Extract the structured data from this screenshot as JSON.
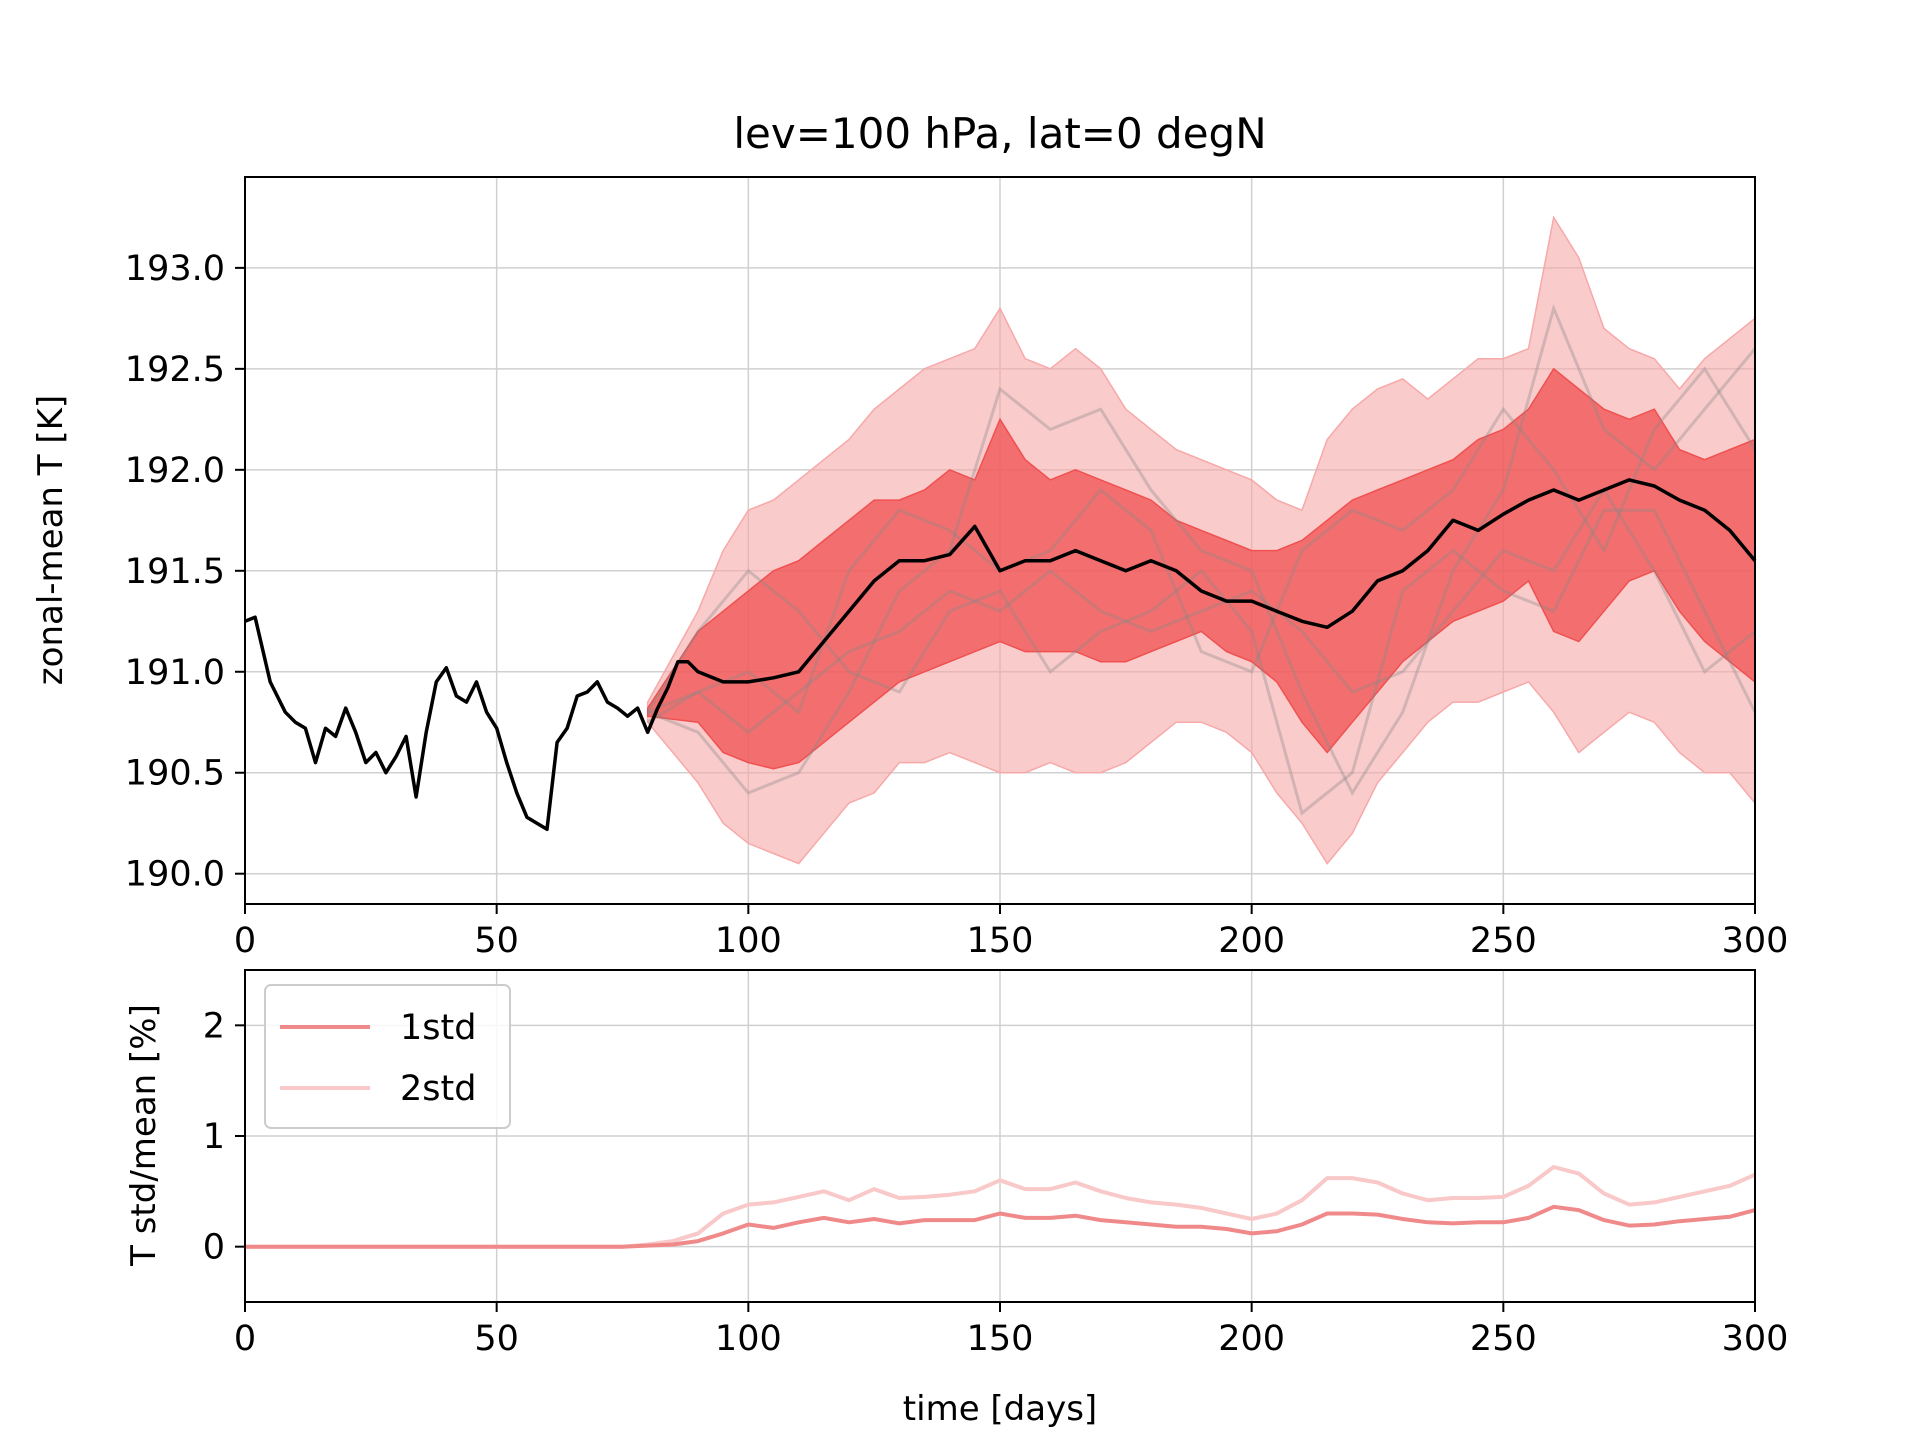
{
  "chart_data": [
    {
      "type": "line",
      "title": "lev=100 hPa, lat=0 degN",
      "xlabel": "",
      "ylabel": "zonal-mean T  [K]",
      "xlim": [
        0,
        300
      ],
      "ylim": [
        189.85,
        193.45
      ],
      "xticks": [
        0,
        50,
        100,
        150,
        200,
        250,
        300
      ],
      "yticks": [
        190.0,
        190.5,
        191.0,
        191.5,
        192.0,
        192.5,
        193.0
      ],
      "ytick_labels": [
        "190.0",
        "190.5",
        "191.0",
        "191.5",
        "192.0",
        "192.5",
        "193.0"
      ],
      "grid": true,
      "series": [
        {
          "role": "mean",
          "color": "#000000",
          "x": [
            0,
            2,
            5,
            8,
            10,
            12,
            14,
            16,
            18,
            20,
            22,
            24,
            26,
            28,
            30,
            32,
            34,
            36,
            38,
            40,
            42,
            44,
            46,
            48,
            50,
            52,
            54,
            56,
            58,
            60,
            62,
            64,
            66,
            68,
            70,
            72,
            74,
            76,
            78,
            80,
            82,
            84,
            86,
            88,
            90,
            95,
            100,
            105,
            110,
            115,
            120,
            125,
            130,
            135,
            140,
            145,
            150,
            155,
            160,
            165,
            170,
            175,
            180,
            185,
            190,
            195,
            200,
            205,
            210,
            215,
            220,
            225,
            230,
            235,
            240,
            245,
            250,
            255,
            260,
            265,
            270,
            275,
            280,
            285,
            290,
            295,
            300
          ],
          "y": [
            191.25,
            191.27,
            190.95,
            190.8,
            190.75,
            190.72,
            190.55,
            190.72,
            190.68,
            190.82,
            190.7,
            190.55,
            190.6,
            190.5,
            190.58,
            190.68,
            190.38,
            190.7,
            190.95,
            191.02,
            190.88,
            190.85,
            190.95,
            190.8,
            190.72,
            190.55,
            190.4,
            190.28,
            190.25,
            190.22,
            190.65,
            190.72,
            190.88,
            190.9,
            190.95,
            190.85,
            190.82,
            190.78,
            190.82,
            190.7,
            190.82,
            190.92,
            191.05,
            191.05,
            191.0,
            190.95,
            190.95,
            190.97,
            191.0,
            191.15,
            191.3,
            191.45,
            191.55,
            191.55,
            191.58,
            191.72,
            191.5,
            191.55,
            191.55,
            191.6,
            191.55,
            191.5,
            191.55,
            191.5,
            191.4,
            191.35,
            191.35,
            191.3,
            191.25,
            191.22,
            191.3,
            191.45,
            191.5,
            191.6,
            191.75,
            191.7,
            191.78,
            191.85,
            191.9,
            191.85,
            191.9,
            191.95,
            191.92,
            191.85,
            191.8,
            191.7,
            191.55
          ]
        }
      ],
      "bands": [
        {
          "name": "2std",
          "color": "#f7a8a8",
          "x": [
            80,
            90,
            95,
            100,
            105,
            110,
            115,
            120,
            125,
            130,
            135,
            140,
            145,
            150,
            155,
            160,
            165,
            170,
            175,
            180,
            185,
            190,
            195,
            200,
            205,
            210,
            215,
            220,
            225,
            230,
            235,
            240,
            245,
            250,
            255,
            260,
            265,
            270,
            275,
            280,
            285,
            290,
            295,
            300
          ],
          "lower": [
            190.75,
            190.45,
            190.25,
            190.15,
            190.1,
            190.05,
            190.2,
            190.35,
            190.4,
            190.55,
            190.55,
            190.6,
            190.55,
            190.5,
            190.5,
            190.55,
            190.5,
            190.5,
            190.55,
            190.65,
            190.75,
            190.75,
            190.7,
            190.6,
            190.4,
            190.25,
            190.05,
            190.2,
            190.45,
            190.6,
            190.75,
            190.85,
            190.85,
            190.9,
            190.95,
            190.8,
            190.6,
            190.7,
            190.8,
            190.75,
            190.6,
            190.5,
            190.5,
            190.35
          ],
          "upper": [
            190.85,
            191.3,
            191.6,
            191.8,
            191.85,
            191.95,
            192.05,
            192.15,
            192.3,
            192.4,
            192.5,
            192.55,
            192.6,
            192.8,
            192.55,
            192.5,
            192.6,
            192.5,
            192.3,
            192.2,
            192.1,
            192.05,
            192.0,
            191.95,
            191.85,
            191.8,
            192.15,
            192.3,
            192.4,
            192.45,
            192.35,
            192.45,
            192.55,
            192.55,
            192.6,
            193.25,
            193.05,
            192.7,
            192.6,
            192.55,
            192.4,
            192.55,
            192.65,
            192.75
          ]
        },
        {
          "name": "1std",
          "color": "#f05050",
          "x": [
            80,
            90,
            95,
            100,
            105,
            110,
            115,
            120,
            125,
            130,
            135,
            140,
            145,
            150,
            155,
            160,
            165,
            170,
            175,
            180,
            185,
            190,
            195,
            200,
            205,
            210,
            215,
            220,
            225,
            230,
            235,
            240,
            245,
            250,
            255,
            260,
            265,
            270,
            275,
            280,
            285,
            290,
            295,
            300
          ],
          "lower": [
            190.78,
            190.75,
            190.6,
            190.55,
            190.52,
            190.55,
            190.65,
            190.75,
            190.85,
            190.95,
            191.0,
            191.05,
            191.1,
            191.15,
            191.1,
            191.1,
            191.1,
            191.05,
            191.05,
            191.1,
            191.15,
            191.2,
            191.1,
            191.05,
            190.95,
            190.75,
            190.6,
            190.75,
            190.9,
            191.05,
            191.15,
            191.25,
            191.3,
            191.35,
            191.45,
            191.2,
            191.15,
            191.3,
            191.45,
            191.5,
            191.3,
            191.15,
            191.05,
            190.95
          ],
          "upper": [
            190.82,
            191.2,
            191.3,
            191.4,
            191.5,
            191.55,
            191.65,
            191.75,
            191.85,
            191.85,
            191.9,
            192.0,
            191.95,
            192.25,
            192.05,
            191.95,
            192.0,
            191.95,
            191.9,
            191.85,
            191.75,
            191.7,
            191.65,
            191.6,
            191.6,
            191.65,
            191.75,
            191.85,
            191.9,
            191.95,
            192.0,
            192.05,
            192.15,
            192.2,
            192.3,
            192.5,
            192.4,
            192.3,
            192.25,
            192.3,
            192.1,
            192.05,
            192.1,
            192.15
          ]
        }
      ],
      "ensemble_members": [
        {
          "color": "#888888",
          "x": [
            80,
            90,
            100,
            110,
            120,
            130,
            140,
            150,
            160,
            170,
            180,
            190,
            200,
            210,
            220,
            230,
            240,
            250,
            260,
            270,
            280,
            290,
            300
          ],
          "y": [
            190.8,
            190.7,
            190.4,
            190.5,
            190.9,
            191.4,
            191.6,
            192.4,
            192.2,
            192.3,
            191.9,
            191.6,
            191.5,
            190.9,
            190.4,
            190.8,
            191.5,
            191.9,
            192.8,
            192.2,
            192.0,
            192.3,
            192.6
          ]
        },
        {
          "color": "#888888",
          "x": [
            80,
            90,
            100,
            110,
            120,
            130,
            140,
            150,
            160,
            170,
            180,
            190,
            200,
            210,
            220,
            230,
            240,
            250,
            260,
            270,
            280,
            290,
            300
          ],
          "y": [
            190.8,
            191.2,
            191.5,
            191.3,
            191.0,
            190.9,
            191.3,
            191.4,
            191.0,
            191.2,
            191.3,
            191.5,
            191.2,
            190.3,
            190.5,
            191.4,
            191.6,
            191.4,
            191.3,
            191.8,
            191.8,
            191.3,
            190.8
          ]
        },
        {
          "color": "#888888",
          "x": [
            80,
            90,
            100,
            110,
            120,
            130,
            140,
            150,
            160,
            170,
            180,
            190,
            200,
            210,
            220,
            230,
            240,
            250,
            260,
            270,
            280,
            290,
            300
          ],
          "y": [
            190.75,
            190.9,
            191.0,
            190.8,
            191.5,
            191.8,
            191.7,
            191.5,
            191.6,
            191.9,
            191.7,
            191.1,
            191.0,
            191.6,
            191.8,
            191.7,
            191.9,
            192.3,
            192.0,
            191.6,
            192.2,
            192.5,
            192.1
          ]
        },
        {
          "color": "#888888",
          "x": [
            80,
            90,
            100,
            110,
            120,
            130,
            140,
            150,
            160,
            170,
            180,
            190,
            200,
            210,
            220,
            230,
            240,
            250,
            260,
            270,
            280,
            290,
            300
          ],
          "y": [
            190.8,
            190.9,
            190.7,
            190.9,
            191.1,
            191.2,
            191.4,
            191.3,
            191.5,
            191.3,
            191.2,
            191.3,
            191.4,
            191.2,
            190.9,
            191.0,
            191.3,
            191.6,
            191.5,
            191.9,
            191.5,
            191.0,
            191.2
          ]
        }
      ]
    },
    {
      "type": "line",
      "title": "",
      "xlabel": "time  [days]",
      "ylabel": "T std/mean  [%]",
      "xlim": [
        0,
        300
      ],
      "ylim": [
        -0.5,
        2.5
      ],
      "xticks": [
        0,
        50,
        100,
        150,
        200,
        250,
        300
      ],
      "yticks": [
        0,
        1,
        2
      ],
      "ytick_labels": [
        "0",
        "1",
        "2"
      ],
      "grid": true,
      "legend": "upper-left",
      "series": [
        {
          "name": "1std",
          "color": "#f08a8a",
          "x": [
            0,
            75,
            80,
            85,
            90,
            95,
            100,
            105,
            110,
            115,
            120,
            125,
            130,
            135,
            140,
            145,
            150,
            155,
            160,
            165,
            170,
            175,
            180,
            185,
            190,
            195,
            200,
            205,
            210,
            215,
            220,
            225,
            230,
            235,
            240,
            245,
            250,
            255,
            260,
            265,
            270,
            275,
            280,
            285,
            290,
            295,
            300
          ],
          "y": [
            0,
            0,
            0.01,
            0.02,
            0.05,
            0.12,
            0.2,
            0.17,
            0.22,
            0.26,
            0.22,
            0.25,
            0.21,
            0.24,
            0.24,
            0.24,
            0.3,
            0.26,
            0.26,
            0.28,
            0.24,
            0.22,
            0.2,
            0.18,
            0.18,
            0.16,
            0.12,
            0.14,
            0.2,
            0.3,
            0.3,
            0.29,
            0.25,
            0.22,
            0.21,
            0.22,
            0.22,
            0.26,
            0.36,
            0.33,
            0.24,
            0.19,
            0.2,
            0.23,
            0.25,
            0.27,
            0.33
          ]
        },
        {
          "name": "2std",
          "color": "#f9c8c8",
          "x": [
            0,
            75,
            80,
            85,
            90,
            95,
            100,
            105,
            110,
            115,
            120,
            125,
            130,
            135,
            140,
            145,
            150,
            155,
            160,
            165,
            170,
            175,
            180,
            185,
            190,
            195,
            200,
            205,
            210,
            215,
            220,
            225,
            230,
            235,
            240,
            245,
            250,
            255,
            260,
            265,
            270,
            275,
            280,
            285,
            290,
            295,
            300
          ],
          "y": [
            0,
            0,
            0.02,
            0.05,
            0.12,
            0.3,
            0.38,
            0.4,
            0.45,
            0.5,
            0.42,
            0.52,
            0.44,
            0.45,
            0.47,
            0.5,
            0.6,
            0.52,
            0.52,
            0.58,
            0.5,
            0.44,
            0.4,
            0.38,
            0.35,
            0.3,
            0.25,
            0.3,
            0.42,
            0.62,
            0.62,
            0.58,
            0.48,
            0.42,
            0.44,
            0.44,
            0.45,
            0.55,
            0.72,
            0.66,
            0.48,
            0.38,
            0.4,
            0.45,
            0.5,
            0.55,
            0.65
          ]
        }
      ]
    }
  ]
}
